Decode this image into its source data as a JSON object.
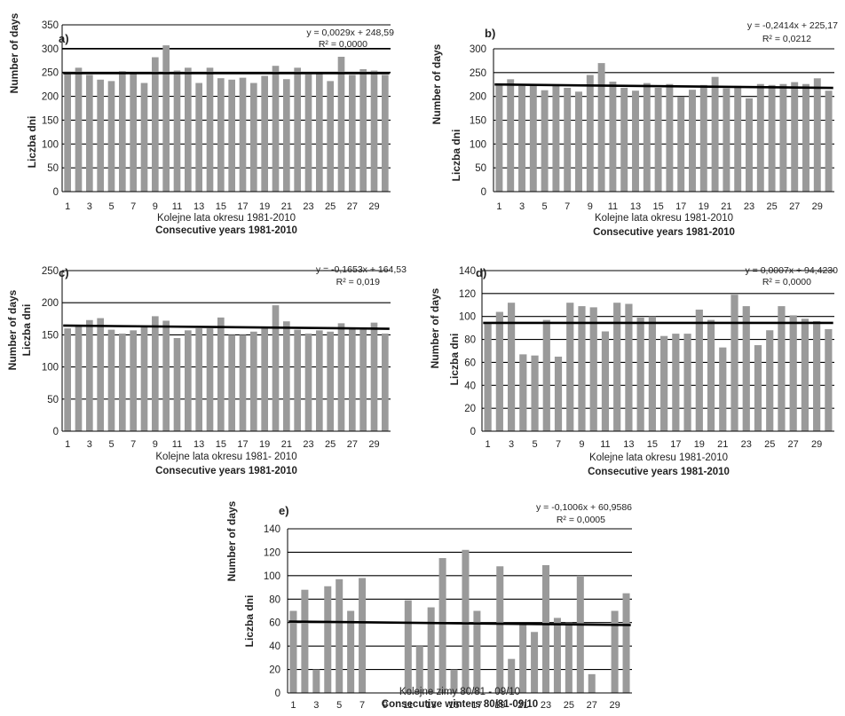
{
  "chart_data": [
    {
      "type": "bar",
      "panel_label": "a)",
      "ylabel_en": "Number of days",
      "ylabel_pl": "Liczba dni",
      "xlabel_pl": "Kolejne lata okresu  1981-2010",
      "xlabel_en": "Consecutive years 1981-2010",
      "equation": "y = 0,0029x  + 248,59",
      "r2": "R² = 0,0000",
      "ylim": [
        0,
        350
      ],
      "yticks": [
        0,
        50,
        100,
        150,
        200,
        250,
        300,
        350
      ],
      "bold_gridlines": [
        250,
        300
      ],
      "xtick_labels": [
        "1",
        "3",
        "5",
        "7",
        "9",
        "11",
        "13",
        "15",
        "17",
        "19",
        "21",
        "23",
        "25",
        "27",
        "29"
      ],
      "x": [
        1,
        2,
        3,
        4,
        5,
        6,
        7,
        8,
        9,
        10,
        11,
        12,
        13,
        14,
        15,
        16,
        17,
        18,
        19,
        20,
        21,
        22,
        23,
        24,
        25,
        26,
        27,
        28,
        29,
        30
      ],
      "values": [
        252,
        260,
        245,
        235,
        232,
        253,
        247,
        228,
        282,
        307,
        254,
        260,
        228,
        260,
        238,
        235,
        239,
        228,
        243,
        264,
        236,
        260,
        246,
        248,
        232,
        283,
        245,
        257,
        254,
        245
      ],
      "trend": {
        "slope": 0.0029,
        "intercept": 248.59
      }
    },
    {
      "type": "bar",
      "panel_label": "b)",
      "ylabel_en": "Number of days",
      "ylabel_pl": "Liczba dni",
      "xlabel_pl": "Kolejne lata okresu  1981-2010",
      "xlabel_en": "Consecutive years 1981-2010",
      "equation": "y = -0,2414x  + 225,17",
      "r2": "R² = 0,0212",
      "ylim": [
        0,
        300
      ],
      "yticks": [
        0,
        50,
        100,
        150,
        200,
        250,
        300
      ],
      "bold_gridlines": [],
      "xtick_labels": [
        "1",
        "3",
        "5",
        "7",
        "9",
        "11",
        "13",
        "15",
        "17",
        "19",
        "21",
        "23",
        "25",
        "27",
        "29"
      ],
      "x": [
        1,
        2,
        3,
        4,
        5,
        6,
        7,
        8,
        9,
        10,
        11,
        12,
        13,
        14,
        15,
        16,
        17,
        18,
        19,
        20,
        21,
        22,
        23,
        24,
        25,
        26,
        27,
        28,
        29,
        30
      ],
      "values": [
        226,
        236,
        222,
        226,
        213,
        225,
        218,
        210,
        245,
        270,
        231,
        218,
        212,
        228,
        218,
        226,
        199,
        214,
        224,
        241,
        217,
        222,
        196,
        226,
        224,
        226,
        230,
        226,
        238,
        212
      ],
      "trend": {
        "slope": -0.2414,
        "intercept": 225.17
      }
    },
    {
      "type": "bar",
      "panel_label": "c)",
      "ylabel_en": "Number of days",
      "ylabel_pl": "Liczba dni",
      "xlabel_pl": "Kolejne lata okresu 1981- 2010",
      "xlabel_en": "Consecutive years 1981-2010",
      "equation": "y = -0,1653x + 164,53",
      "r2": "R² = 0,019",
      "ylim": [
        0,
        250
      ],
      "yticks": [
        0,
        50,
        100,
        150,
        200,
        250
      ],
      "bold_gridlines": [],
      "xtick_labels": [
        "1",
        "3",
        "5",
        "7",
        "9",
        "11",
        "13",
        "15",
        "17",
        "19",
        "21",
        "23",
        "25",
        "27",
        "29"
      ],
      "x": [
        1,
        2,
        3,
        4,
        5,
        6,
        7,
        8,
        9,
        10,
        11,
        12,
        13,
        14,
        15,
        16,
        17,
        18,
        19,
        20,
        21,
        22,
        23,
        24,
        25,
        26,
        27,
        28,
        29,
        30
      ],
      "values": [
        160,
        164,
        173,
        176,
        158,
        152,
        157,
        164,
        179,
        172,
        145,
        157,
        160,
        160,
        177,
        150,
        150,
        155,
        160,
        196,
        171,
        158,
        152,
        157,
        155,
        168,
        160,
        158,
        169,
        152
      ],
      "trend": {
        "slope": -0.1653,
        "intercept": 164.53
      }
    },
    {
      "type": "bar",
      "panel_label": "d)",
      "ylabel_en": "Number of days",
      "ylabel_pl": "Liczba dni",
      "xlabel_pl": "Kolejne lata okresu  1981-2010",
      "xlabel_en": "Consecutive years 1981-2010",
      "equation": "y = 0,0007x  + 94,4230",
      "r2": "R² = 0,0000",
      "ylim": [
        0,
        140
      ],
      "yticks": [
        0,
        20,
        40,
        60,
        80,
        100,
        120,
        140
      ],
      "bold_gridlines": [],
      "xtick_labels": [
        "1",
        "3",
        "5",
        "7",
        "9",
        "11",
        "13",
        "15",
        "17",
        "19",
        "21",
        "23",
        "25",
        "27",
        "29"
      ],
      "x": [
        1,
        2,
        3,
        4,
        5,
        6,
        7,
        8,
        9,
        10,
        11,
        12,
        13,
        14,
        15,
        16,
        17,
        18,
        19,
        20,
        21,
        22,
        23,
        24,
        25,
        26,
        27,
        28,
        29,
        30
      ],
      "values": [
        95,
        104,
        112,
        67,
        66,
        97,
        65,
        112,
        109,
        108,
        87,
        112,
        111,
        99,
        100,
        83,
        85,
        85,
        106,
        97,
        73,
        119,
        109,
        75,
        88,
        109,
        101,
        98,
        96,
        89
      ],
      "trend": {
        "slope": 0.0007,
        "intercept": 94.423
      }
    },
    {
      "type": "bar",
      "panel_label": "e)",
      "ylabel_en": "Number of days",
      "ylabel_pl": "Liczba dni",
      "xlabel_pl": "Kolejne zimy 80/81  - 09/10",
      "xlabel_en": "Consecutive winters 80/81-09/10",
      "equation": "y = -0,1006x  + 60,9586",
      "r2": "R² = 0,0005",
      "ylim": [
        0,
        140
      ],
      "yticks": [
        0,
        20,
        40,
        60,
        80,
        100,
        120,
        140
      ],
      "bold_gridlines": [],
      "xtick_labels": [
        "1",
        "3",
        "5",
        "7",
        "9",
        "11",
        "13",
        "15",
        "17",
        "19",
        "21",
        "23",
        "25",
        "27",
        "29"
      ],
      "x": [
        1,
        2,
        3,
        4,
        5,
        6,
        7,
        8,
        9,
        10,
        11,
        12,
        13,
        14,
        15,
        16,
        17,
        18,
        19,
        20,
        21,
        22,
        23,
        24,
        25,
        26,
        27,
        28,
        29,
        30
      ],
      "values": [
        70,
        88,
        20,
        91,
        97,
        70,
        98,
        0,
        0,
        0,
        79,
        40,
        73,
        115,
        20,
        122,
        70,
        0,
        108,
        29,
        58,
        52,
        109,
        64,
        60,
        100,
        16,
        0,
        70,
        85
      ],
      "trend": {
        "slope": -0.1006,
        "intercept": 60.9586
      }
    }
  ]
}
